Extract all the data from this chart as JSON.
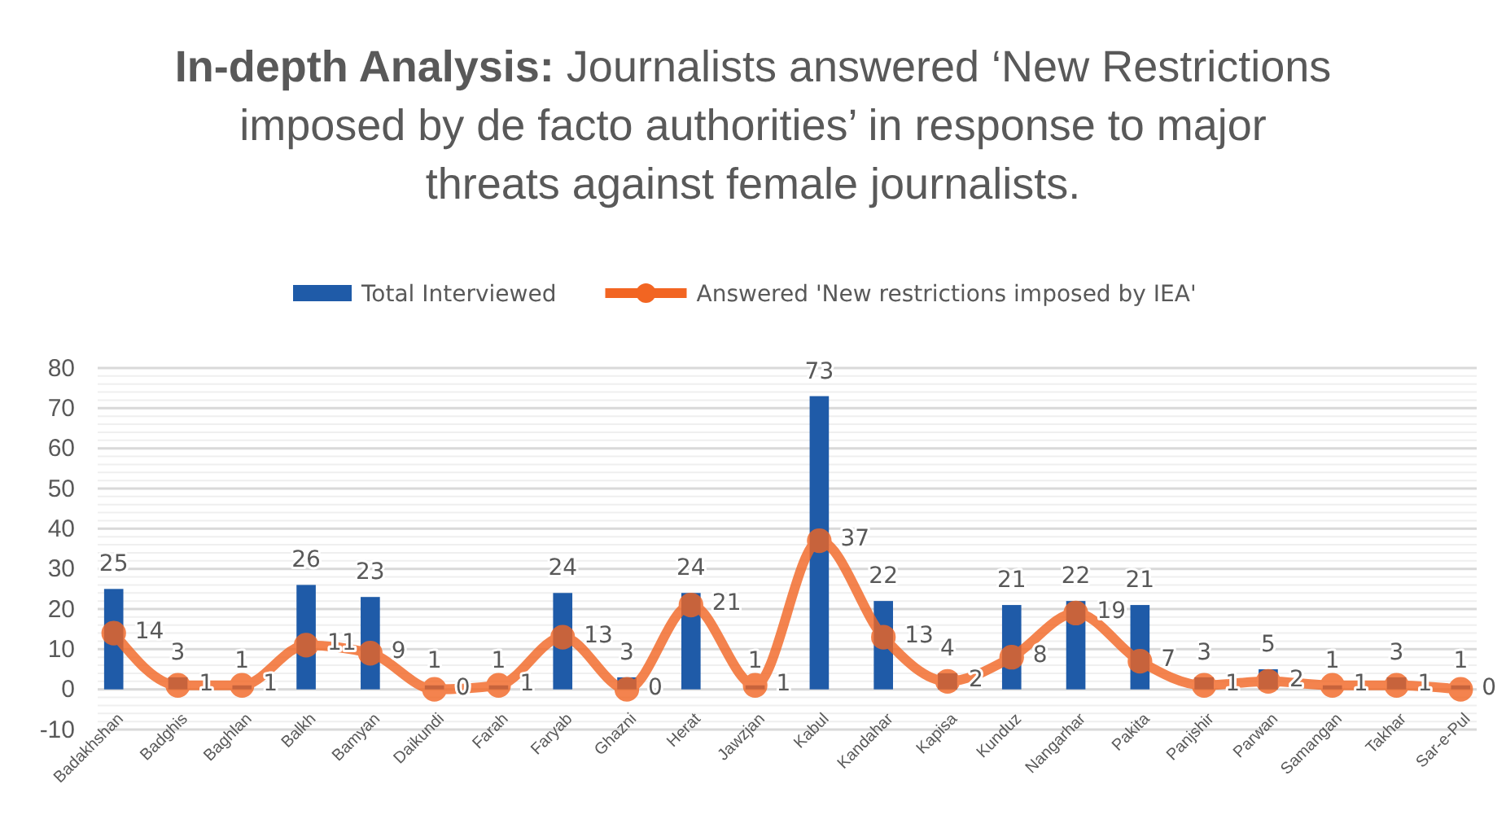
{
  "chart_data": {
    "type": "bar",
    "title": "In-depth Analysis: Journalists answered ‘New Restrictions imposed by de facto authorities’ in response to major threats against female journalists.",
    "categories": [
      "Badakhshan",
      "Badghis",
      "Baghlan",
      "Balkh",
      "Bamyan",
      "Daikundi",
      "Farah",
      "Faryab",
      "Ghazni",
      "Herat",
      "Jawzjan",
      "Kabul",
      "Kandahar",
      "Kapisa",
      "Kunduz",
      "Nangarhar",
      "Pakita",
      "Panjshir",
      "Parwan",
      "Samangan",
      "Takhar",
      "Sar-e-Pul"
    ],
    "series": [
      {
        "name": "Total Interviewed",
        "color": "#1f5ba8",
        "values": [
          25,
          3,
          1,
          26,
          23,
          1,
          1,
          24,
          3,
          24,
          1,
          73,
          22,
          4,
          21,
          22,
          21,
          3,
          5,
          1,
          3,
          1
        ]
      },
      {
        "name": "Answered 'New restrictions imposed by IEA'",
        "type": "line",
        "color": "#f26522",
        "values": [
          14,
          1,
          1,
          11,
          9,
          0,
          1,
          13,
          0,
          21,
          1,
          37,
          13,
          2,
          8,
          19,
          7,
          1,
          2,
          1,
          1,
          0
        ]
      }
    ],
    "ylim": [
      -10,
      80
    ],
    "yticks": [
      -10,
      0,
      10,
      20,
      30,
      40,
      50,
      60,
      70,
      80
    ],
    "grid": "y",
    "legend": "top",
    "data_labels": true,
    "marker": "circle",
    "line_style": "solid"
  }
}
